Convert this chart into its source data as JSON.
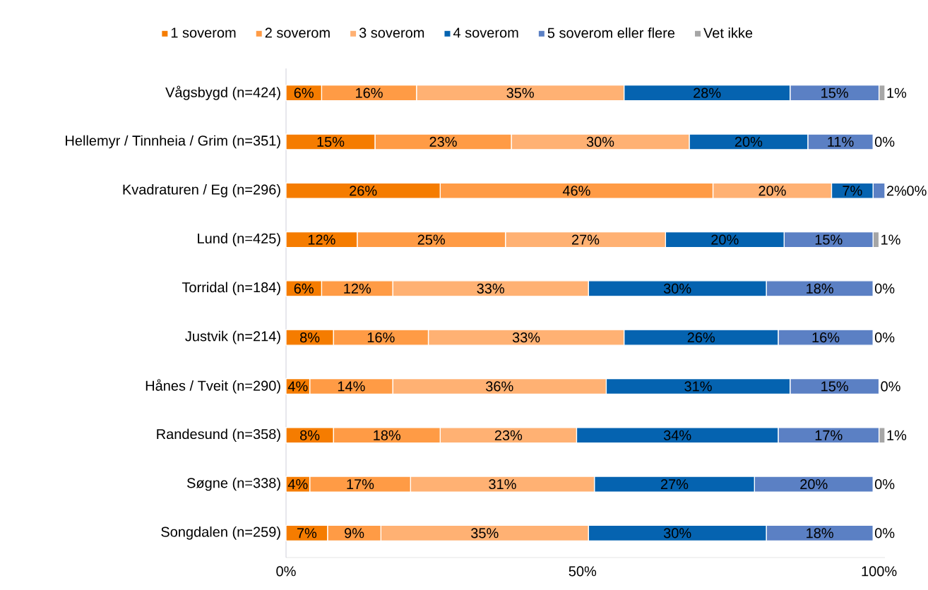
{
  "chart_data": {
    "type": "bar",
    "orientation": "horizontal",
    "stacked": true,
    "legend": "top",
    "categories": [
      "Vågsbygd (n=424)",
      "Hellemyr / Tinnheia / Grim (n=351)",
      "Kvadraturen / Eg (n=296)",
      "Lund (n=425)",
      "Torridal (n=184)",
      "Justvik (n=214)",
      "Hånes / Tveit (n=290)",
      "Randesund (n=358)",
      "Søgne (n=338)",
      "Songdalen (n=259)"
    ],
    "xlim": [
      0,
      101
    ],
    "xticks": [
      {
        "value": 0,
        "label": "0%"
      },
      {
        "value": 50,
        "label": "50%"
      },
      {
        "value": 100,
        "label": "100%"
      }
    ],
    "series": [
      {
        "name": "1 soverom",
        "color": "#f57c00",
        "values": [
          6,
          15,
          26,
          12,
          6,
          8,
          4,
          8,
          4,
          7
        ],
        "value_labels": [
          "6%",
          "15%",
          "26%",
          "12%",
          "6%",
          "8%",
          "4%",
          "8%",
          "4%",
          "7%"
        ]
      },
      {
        "name": "2 soverom",
        "color": "#ff9b45",
        "values": [
          16,
          23,
          46,
          25,
          12,
          16,
          14,
          18,
          17,
          9
        ],
        "value_labels": [
          "16%",
          "23%",
          "46%",
          "25%",
          "12%",
          "16%",
          "14%",
          "18%",
          "17%",
          "9%"
        ]
      },
      {
        "name": "3 soverom",
        "color": "#ffb173",
        "values": [
          35,
          30,
          20,
          27,
          33,
          33,
          36,
          23,
          31,
          35
        ],
        "value_labels": [
          "35%",
          "30%",
          "20%",
          "27%",
          "33%",
          "33%",
          "36%",
          "23%",
          "31%",
          "35%"
        ]
      },
      {
        "name": "4 soverom",
        "color": "#0563b0",
        "values": [
          28,
          20,
          7,
          20,
          30,
          26,
          31,
          34,
          27,
          30
        ],
        "value_labels": [
          "28%",
          "20%",
          "7%",
          "20%",
          "30%",
          "26%",
          "31%",
          "34%",
          "27%",
          "30%"
        ]
      },
      {
        "name": "5 soverom eller flere",
        "color": "#5b80c4",
        "values": [
          15,
          11,
          2,
          15,
          18,
          16,
          15,
          17,
          20,
          18
        ],
        "value_labels": [
          "15%",
          "11%",
          "2%",
          "15%",
          "18%",
          "16%",
          "15%",
          "17%",
          "20%",
          "18%"
        ]
      },
      {
        "name": "Vet ikke",
        "color": "#a6a6a6",
        "values": [
          1,
          0,
          0,
          1,
          0,
          0,
          0,
          1,
          0,
          0
        ],
        "value_labels": [
          "1%",
          "0%",
          "0%",
          "1%",
          "0%",
          "0%",
          "0%",
          "1%",
          "0%",
          "0%"
        ]
      }
    ]
  }
}
